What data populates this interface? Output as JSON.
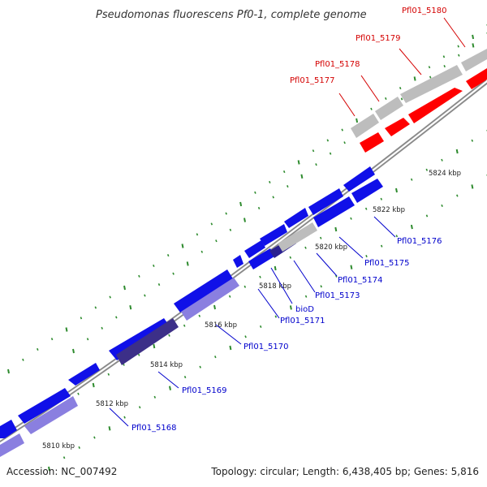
{
  "title": "Pseudomonas fluorescens Pf0-1, complete genome",
  "footer": {
    "accession": "Accession: NC_007492",
    "summary": "Topology: circular; Length: 6,438,405 bp; Genes: 5,816"
  },
  "colors": {
    "forward_gene": "#ff0000",
    "forward_gene_dim": "#bdbdbd",
    "reverse_gene": "#1010e8",
    "reverse_gene_light": "#8a7fe0",
    "reverse_gene_dark": "#3c2f88",
    "gene_label_forward": "#d40000",
    "gene_label_reverse": "#0000cc",
    "tick_mark": "#2e8b2e",
    "backbone": "#8a8a8a"
  },
  "ticks": [
    "5810 kbp",
    "5812 kbp",
    "5814 kbp",
    "5816 kbp",
    "5818 kbp",
    "5820 kbp",
    "5822 kbp",
    "5824 kbp"
  ],
  "gene_labels": {
    "forward": [
      "Pfl01_5177",
      "Pfl01_5178",
      "Pfl01_5179",
      "Pfl01_5180"
    ],
    "reverse": [
      "Pfl01_5168",
      "Pfl01_5169",
      "Pfl01_5170",
      "Pfl01_5171",
      "bioD",
      "Pfl01_5173",
      "Pfl01_5174",
      "Pfl01_5175",
      "Pfl01_5176"
    ]
  }
}
